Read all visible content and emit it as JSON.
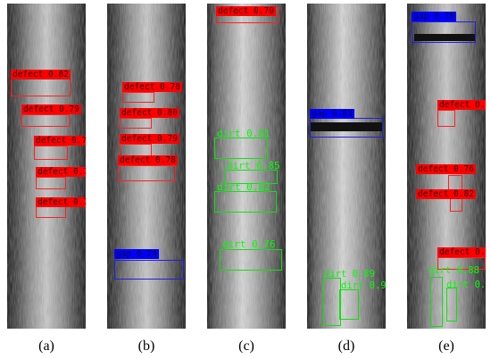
{
  "panels": [
    {
      "caption": "(a)",
      "detections": [
        {
          "label": "defect 0.82",
          "class": "defect"
        },
        {
          "label": "defect 0.79",
          "class": "defect"
        },
        {
          "label": "defect 0.75",
          "class": "defect"
        },
        {
          "label": "defect 0.73",
          "class": "defect"
        },
        {
          "label": "defect 0.71",
          "class": "defect"
        }
      ]
    },
    {
      "caption": "(b)",
      "detections": [
        {
          "label": "defect 0.78",
          "class": "defect"
        },
        {
          "label": "defect 0.80",
          "class": "defect"
        },
        {
          "label": "defect 0.79",
          "class": "defect"
        },
        {
          "label": "defect 0.78",
          "class": "defect"
        },
        {
          "label": "gap 0.74",
          "class": "gap"
        }
      ]
    },
    {
      "caption": "(c)",
      "detections": [
        {
          "label": "defect 0.70",
          "class": "defect"
        },
        {
          "label": "dirt 0.81",
          "class": "dirt"
        },
        {
          "label": "dirt 0.85",
          "class": "dirt"
        },
        {
          "label": "dirt 0.82",
          "class": "dirt"
        },
        {
          "label": "dirt 0.76",
          "class": "dirt"
        }
      ]
    },
    {
      "caption": "(d)",
      "detections": [
        {
          "label": "gap 0.83",
          "class": "gap"
        },
        {
          "label": "dirt 0.89",
          "class": "dirt"
        },
        {
          "label": "dirt 0.91",
          "class": "dirt"
        }
      ]
    },
    {
      "caption": "(e)",
      "detections": [
        {
          "label": "gap 0.78",
          "class": "gap"
        },
        {
          "label": "defect 0.84",
          "class": "defect"
        },
        {
          "label": "defect 0.76",
          "class": "defect"
        },
        {
          "label": "defect 0.82",
          "class": "defect"
        },
        {
          "label": "defect 0.82",
          "class": "defect"
        },
        {
          "label": "dirt 0.88",
          "class": "dirt"
        },
        {
          "label": "dirt 0.84",
          "class": "dirt"
        }
      ]
    }
  ],
  "colors": {
    "defect": "#ff0000",
    "dirt": "#00ff00",
    "gap": "#0000ff"
  }
}
